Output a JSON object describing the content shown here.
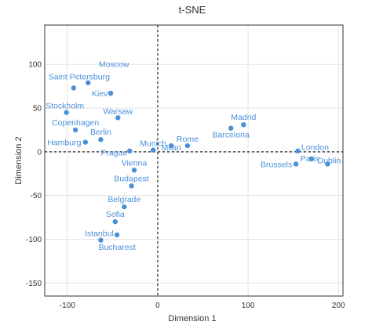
{
  "chart_data": {
    "type": "scatter",
    "title": "t-SNE",
    "xlabel": "Dimension 1",
    "ylabel": "Dimension 2",
    "xlim": [
      -125,
      205
    ],
    "ylim": [
      -165,
      145
    ],
    "xticks": [
      -100,
      0,
      100,
      200
    ],
    "yticks": [
      -150,
      -100,
      -50,
      0,
      50,
      100
    ],
    "grid": true,
    "zero_lines": true,
    "color": "#4a90d9",
    "points": [
      {
        "label": "Moscow",
        "x": -77,
        "y": 79
      },
      {
        "label": "Saint Petersburg",
        "x": -93,
        "y": 73
      },
      {
        "label": "Kiev",
        "x": -52,
        "y": 67
      },
      {
        "label": "Stockholm",
        "x": -101,
        "y": 45
      },
      {
        "label": "Warsaw",
        "x": -44,
        "y": 39
      },
      {
        "label": "Copenhagen",
        "x": -91,
        "y": 25
      },
      {
        "label": "Berlin",
        "x": -63,
        "y": 14
      },
      {
        "label": "Hamburg",
        "x": -80,
        "y": 11
      },
      {
        "label": "Prague",
        "x": -31,
        "y": 1
      },
      {
        "label": "Munich",
        "x": -5,
        "y": 2
      },
      {
        "label": "Milan",
        "x": 15,
        "y": 7
      },
      {
        "label": "Rome",
        "x": 33,
        "y": 7
      },
      {
        "label": "Vienna",
        "x": -26,
        "y": -21
      },
      {
        "label": "Budapest",
        "x": -29,
        "y": -39
      },
      {
        "label": "Belgrade",
        "x": -37,
        "y": -63
      },
      {
        "label": "Sofia",
        "x": -47,
        "y": -80
      },
      {
        "label": "Istanbul",
        "x": -63,
        "y": -101
      },
      {
        "label": "Bucharest",
        "x": -45,
        "y": -95
      },
      {
        "label": "Madrid",
        "x": 95,
        "y": 31
      },
      {
        "label": "Barcelona",
        "x": 81,
        "y": 27
      },
      {
        "label": "London",
        "x": 155,
        "y": 1
      },
      {
        "label": "Paris",
        "x": 170,
        "y": -8
      },
      {
        "label": "Brussels",
        "x": 153,
        "y": -14
      },
      {
        "label": "Dublin",
        "x": 188,
        "y": -14
      }
    ]
  }
}
